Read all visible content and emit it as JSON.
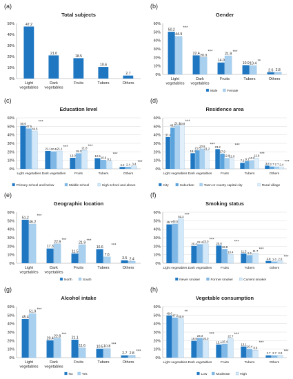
{
  "colors": {
    "single": "#1f77c2",
    "axis": "#9a9a9a",
    "grid": "#d9d9d9",
    "text": "#222222",
    "sig": "#333333"
  },
  "chart_data": [
    {
      "type": "bar",
      "panel": "(a)",
      "title": "Total subjects",
      "categories": [
        "Light vegetables",
        "Dark vegetables",
        "Fruits",
        "Tubers",
        "Others"
      ],
      "series": [
        {
          "values": [
            47.2,
            21.0,
            18.5,
            10.6,
            2.7
          ]
        }
      ],
      "value_labels": [
        [
          "47.2",
          "21.0",
          "18.5",
          "10.6",
          "2.7"
        ]
      ],
      "sig": [],
      "ylim": [
        0,
        50
      ],
      "yticks": [
        "0%",
        "10%",
        "20%",
        "30%",
        "40%",
        "50%"
      ],
      "colors": [
        "#1f77c2"
      ],
      "legend": "none",
      "grid": false
    },
    {
      "type": "bar",
      "panel": "(b)",
      "title": "Gender",
      "categories": [
        "Light vegetables",
        "Dark vegetables",
        "Fruits",
        "Tubers",
        "Others"
      ],
      "series": [
        {
          "name": "Male",
          "values": [
            50.2,
            22.4,
            14.0,
            10.9,
            2.6
          ]
        },
        {
          "name": "Female",
          "values": [
            44.9,
            20.0,
            21.9,
            10.4,
            2.8
          ]
        }
      ],
      "value_labels": [
        [
          "50.2",
          "22.4",
          "14.0",
          "10.9",
          "2.6"
        ],
        [
          "44.9",
          "20.0",
          "21.9",
          "10.4",
          "2.8"
        ]
      ],
      "sig": [
        "***",
        "***",
        "***",
        "**",
        ""
      ],
      "ylim": [
        0,
        60
      ],
      "yticks": [
        "0%",
        "10%",
        "20%",
        "30%",
        "40%",
        "50%",
        "60%"
      ],
      "colors": [
        "#1f77c2",
        "#a9d0ef"
      ],
      "legend": "bottom",
      "grid": false
    },
    {
      "type": "bar",
      "panel": "(c)",
      "title": "Education level",
      "categories": [
        "Light vegetables",
        "Dark vegetables",
        "Fruits",
        "Tubers",
        "Others"
      ],
      "series": [
        {
          "name": "Primary school and below",
          "values": [
            50.6,
            21.1,
            13.0,
            12.5,
            2.2
          ]
        },
        {
          "name": "Middle school",
          "values": [
            47.5,
            20.5,
            18.3,
            10.6,
            2.4
          ]
        },
        {
          "name": "High school and above",
          "values": [
            44.6,
            21.1,
            21.8,
            9.1,
            3.4
          ]
        }
      ],
      "value_labels": [
        [
          "50.6",
          "21.1",
          "13.0",
          "12.5",
          "2.2"
        ],
        [
          "47.5",
          "20.5",
          "18.3",
          "10.6",
          "2.4"
        ],
        [
          "44.6",
          "21.1",
          "21.8",
          "9.1",
          "3.4"
        ]
      ],
      "sig": [
        "***",
        "***",
        "***",
        "***",
        "***"
      ],
      "ylim": [
        0,
        60
      ],
      "yticks": [
        "0%",
        "10%",
        "20%",
        "30%",
        "40%",
        "50%",
        "60%"
      ],
      "colors": [
        "#1f77c2",
        "#7fb8e6",
        "#d3e8f8"
      ],
      "legend": "bottom",
      "grid": true
    },
    {
      "type": "bar",
      "panel": "(d)",
      "title": "Residence area",
      "categories": [
        "Light vegetables",
        "Dark vegetables",
        "Fruits",
        "Tubers",
        "Others"
      ],
      "series": [
        {
          "name": "City",
          "values": [
            37.4,
            18.4,
            23.2,
            7.1,
            3.8
          ]
        },
        {
          "name": "Suburban",
          "values": [
            48.5,
            21.8,
            17.9,
            9.1,
            2.7
          ]
        },
        {
          "name": "Town or county capital city",
          "values": [
            51.2,
            23.8,
            12.8,
            10.0,
            2.7
          ]
        },
        {
          "name": "Rural village",
          "values": [
            50.8,
            21.2,
            12.0,
            12.8,
            2.4
          ]
        }
      ],
      "value_labels": [
        [
          "37.4",
          "18.4",
          "23.2",
          "7.1",
          "3.8"
        ],
        [
          "48.5",
          "21.8",
          "17.9",
          "9.1",
          "2.7"
        ],
        [
          "51.2",
          "23.8",
          "12.8",
          "10.0",
          "2.7"
        ],
        [
          "50.8",
          "21.2",
          "12.0",
          "12.8",
          "2.4"
        ]
      ],
      "sig": [
        "***",
        "***",
        "***",
        "***",
        "***"
      ],
      "ylim": [
        0,
        60
      ],
      "yticks": [
        "0%",
        "10%",
        "20%",
        "30%",
        "40%",
        "50%",
        "60%"
      ],
      "colors": [
        "#1f77c2",
        "#5aa3dc",
        "#a9d0ef",
        "#e1effa"
      ],
      "legend": "bottom",
      "grid": true
    },
    {
      "type": "bar",
      "panel": "(e)",
      "title": "Geographic location",
      "categories": [
        "Light vegetables",
        "Dark vegetables",
        "Fruits",
        "Tubers",
        "Others"
      ],
      "series": [
        {
          "name": "North",
          "values": [
            51.2,
            17.3,
            11.5,
            16.6,
            3.5
          ]
        },
        {
          "name": "South",
          "values": [
            46.2,
            22.9,
            21.9,
            7.6,
            2.4
          ]
        }
      ],
      "value_labels": [
        [
          "51.2",
          "17.3",
          "11.5",
          "16.6",
          "3.5"
        ],
        [
          "46.2",
          "22.9",
          "21.9",
          "7.6",
          "2.4"
        ]
      ],
      "sig": [
        "***",
        "***",
        "***",
        "***",
        ""
      ],
      "ylim": [
        0,
        60
      ],
      "yticks": [
        "0%",
        "10%",
        "20%",
        "30%",
        "40%",
        "50%",
        "60%"
      ],
      "colors": [
        "#1f77c2",
        "#a9d0ef"
      ],
      "legend": "bottom",
      "grid": false
    },
    {
      "type": "bar",
      "panel": "(f)",
      "title": "Smoking status",
      "categories": [
        "Light vegetables",
        "Dark vegetables",
        "Fruits",
        "Tubers",
        "Others"
      ],
      "series": [
        {
          "name": "Never smoker",
          "values": [
            45.7,
            20.4,
            20.8,
            11.5,
            2.8
          ]
        },
        {
          "name": "Former smoker",
          "values": [
            46.5,
            22.4,
            16.8,
            9.5,
            2.0
          ]
        },
        {
          "name": "Current smoker",
          "values": [
            52.3,
            23.0,
            10.4,
            11.7,
            2.6
          ]
        }
      ],
      "value_labels": [
        [
          "45.7",
          "20.4",
          "20.8",
          "11.5",
          "2.8"
        ],
        [
          "46.5",
          "22.4",
          "16.8",
          "9.5",
          "2.0"
        ],
        [
          "52.3",
          "23.0",
          "10.4",
          "11.7",
          "2.6"
        ]
      ],
      "sig": [
        "***",
        "***",
        "***",
        "***",
        "***"
      ],
      "ylim": [
        0,
        60
      ],
      "yticks": [
        "0%",
        "10%",
        "20%",
        "30%",
        "40%",
        "50%",
        "60%"
      ],
      "colors": [
        "#1f77c2",
        "#7fb8e6",
        "#d3e8f8"
      ],
      "legend": "bottom",
      "grid": true
    },
    {
      "type": "bar",
      "panel": "(g)",
      "title": "Alcohol intake",
      "categories": [
        "Light vegetables",
        "Dark vegetables",
        "Fruits",
        "Tubers",
        "Others"
      ],
      "series": [
        {
          "name": "No",
          "values": [
            45.4,
            20.4,
            21.1,
            10.5,
            2.7
          ]
        },
        {
          "name": "Yes",
          "values": [
            51.9,
            22.8,
            11.6,
            10.8,
            2.8
          ]
        }
      ],
      "value_labels": [
        [
          "45.4",
          "20.4",
          "21.1",
          "10.5",
          "2.7"
        ],
        [
          "51.9",
          "22.8",
          "11.6",
          "10.8",
          "2.8"
        ]
      ],
      "sig": [
        "***",
        "***",
        "",
        "***",
        "***"
      ],
      "ylim": [
        0,
        60
      ],
      "yticks": [
        "0%",
        "10%",
        "20%",
        "30%",
        "40%",
        "50%",
        "60%"
      ],
      "colors": [
        "#1f77c2",
        "#a9d0ef"
      ],
      "legend": "bottom",
      "grid": false
    },
    {
      "type": "bar",
      "panel": "(h)",
      "title": "Vegetable consumption",
      "categories": [
        "Light vegetables",
        "Dark vegetables",
        "Fruits",
        "Tubers",
        "Others"
      ],
      "series": [
        {
          "name": "Low",
          "values": [
            49.6,
            19.8,
            15.4,
            13.1,
            2.7
          ]
        },
        {
          "name": "Moderate",
          "values": [
            47.2,
            23.3,
            16.4,
            10.4,
            2.7
          ]
        },
        {
          "name": "High",
          "values": [
            45.9,
            20.0,
            22.7,
            8.8,
            2.8
          ]
        }
      ],
      "value_labels": [
        [
          "49.6",
          "19.8",
          "15.4",
          "13.1",
          "2.7"
        ],
        [
          "47.2",
          "23.3",
          "16.4",
          "10.4",
          "2.7"
        ],
        [
          "45.9",
          "20.0",
          "22.7",
          "8.8",
          "2.8"
        ]
      ],
      "sig": [
        "**",
        "***",
        "***",
        "***",
        "***"
      ],
      "ylim": [
        0,
        60
      ],
      "yticks": [
        "0%",
        "10%",
        "20%",
        "30%",
        "40%",
        "50%",
        "60%"
      ],
      "colors": [
        "#1f77c2",
        "#7fb8e6",
        "#d3e8f8"
      ],
      "legend": "bottom",
      "grid": true
    }
  ]
}
